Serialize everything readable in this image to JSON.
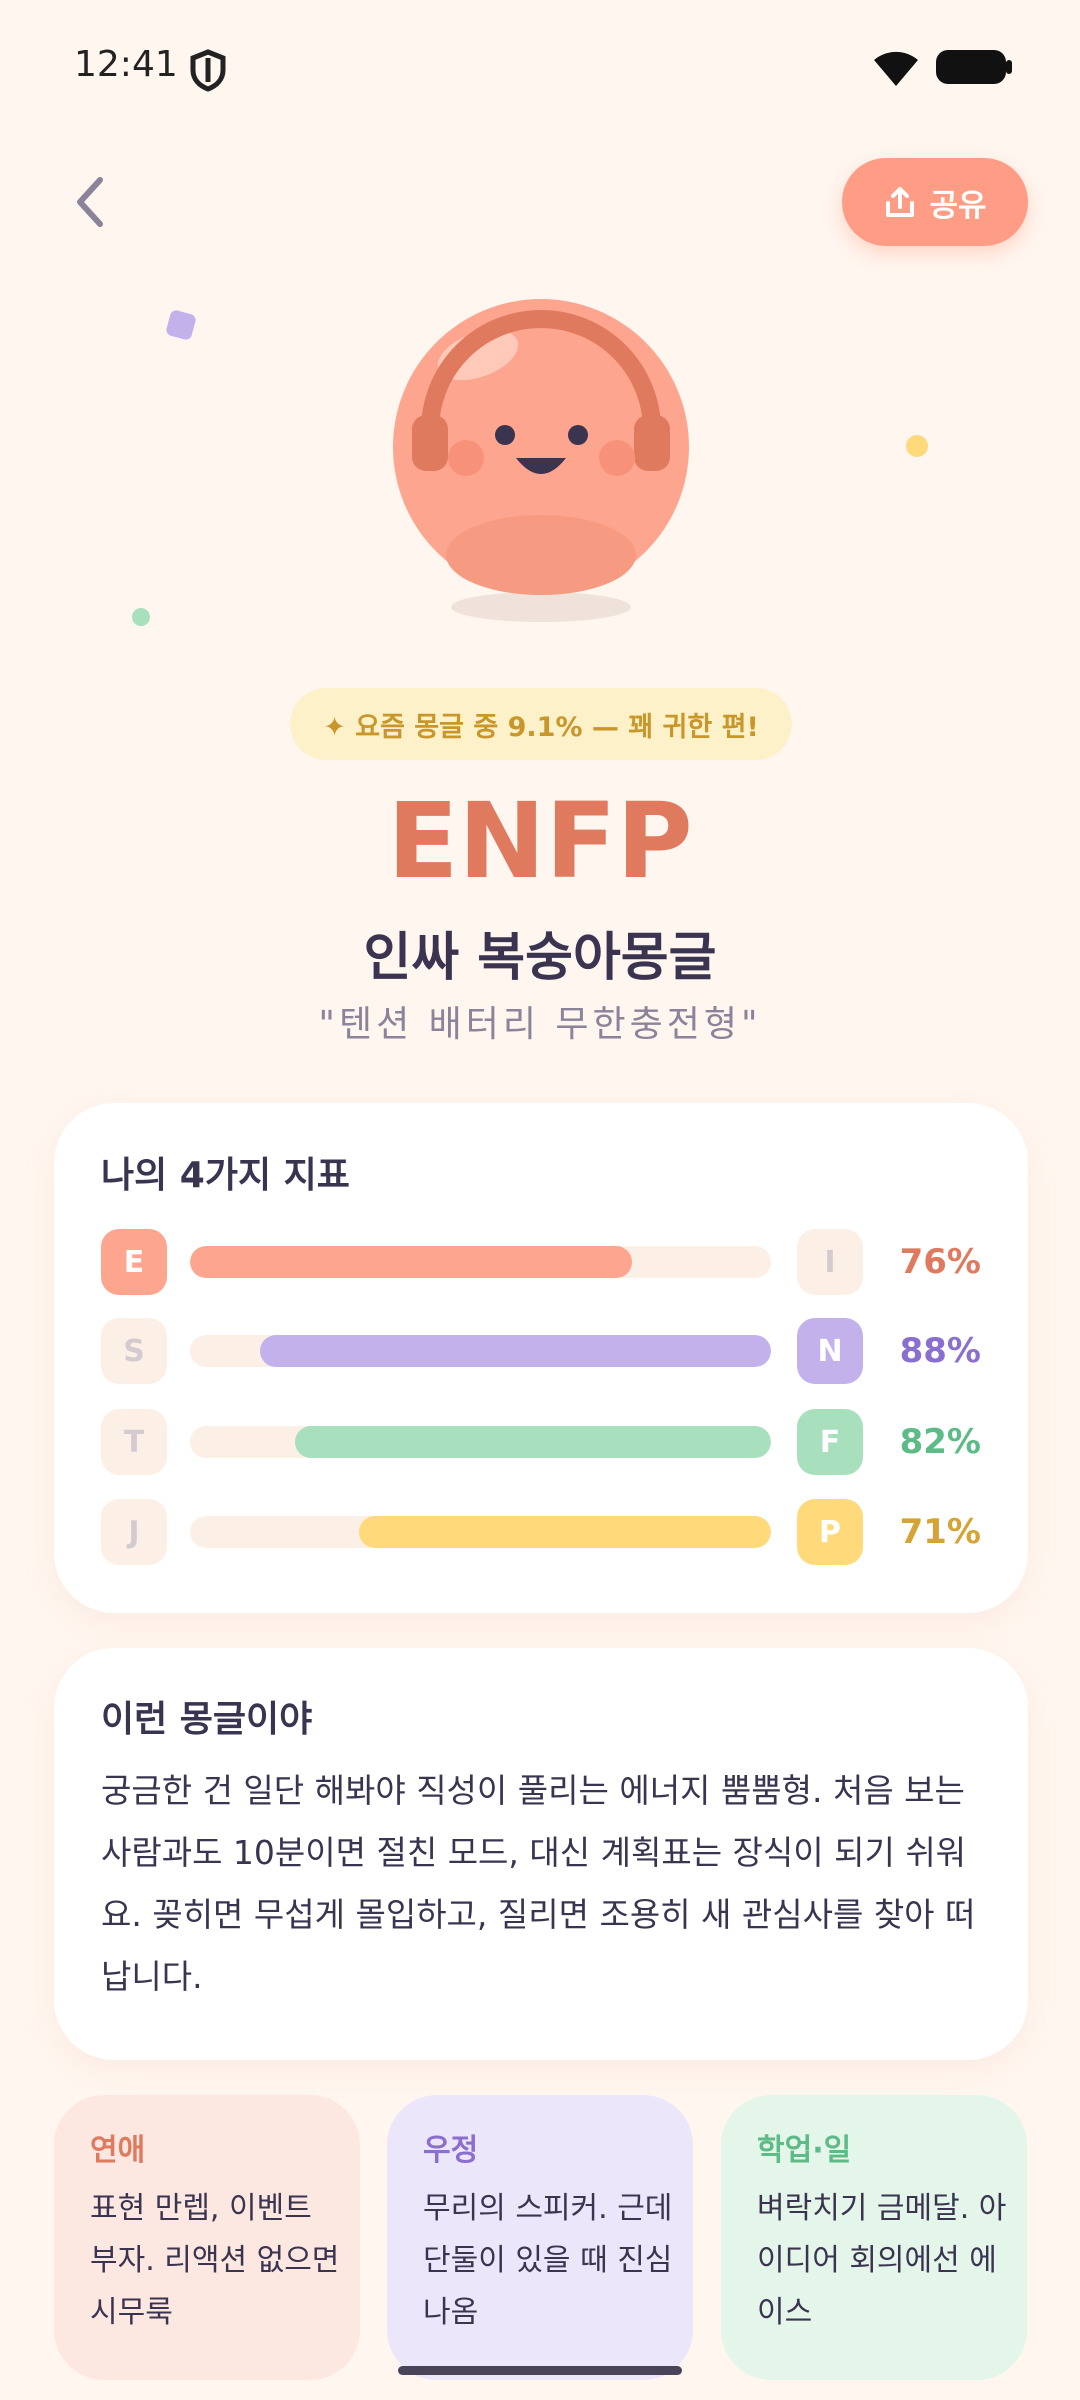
{
  "status_bar": {
    "time": "12:41"
  },
  "header": {
    "share": "공유"
  },
  "hero": {
    "badge": "✦ 요즘 몽글 중 9.1% — 꽤 귀한 편!",
    "type": "ENFP",
    "name": "인싸 복숭아몽글",
    "tagline": "\"텐션 배터리 무한충전형\""
  },
  "indicators": {
    "title": "나의 4가지 지표",
    "rows": [
      {
        "left": "E",
        "right": "I",
        "active": "left",
        "percent": {
          "value": 76,
          "label": "76%"
        },
        "color": "#fda58e",
        "text_color": "#e07a5f"
      },
      {
        "left": "S",
        "right": "N",
        "active": "right",
        "percent": {
          "value": 88,
          "label": "88%"
        },
        "color": "#c3b1ec",
        "text_color": "#8b6fd0"
      },
      {
        "left": "T",
        "right": "F",
        "active": "right",
        "percent": {
          "value": 82,
          "label": "82%"
        },
        "color": "#a8dfbd",
        "text_color": "#5dbb87"
      },
      {
        "left": "J",
        "right": "P",
        "active": "right",
        "percent": {
          "value": 71,
          "label": "71%"
        },
        "color": "#ffd97a",
        "text_color": "#d4a535"
      }
    ]
  },
  "description": {
    "title": "이런 몽글이야",
    "body": "궁금한 건 일단 해봐야 직성이 풀리는 에너지 뿜뿜형. 처음 보는 사람과도 10분이면 절친 모드, 대신 계획표는 장식이 되기 쉬워요. 꽂히면 무섭게 몰입하고, 질리면 조용히 새 관심사를 찾아 떠납니다."
  },
  "cards": [
    {
      "title": "연애",
      "body": "표현 만렙, 이벤트 부자. 리액션 없으면 시무룩",
      "bg": "#fde8e1",
      "color": "#e07a5f"
    },
    {
      "title": "우정",
      "body": "무리의 스피커. 근데 단둘이 있을 때 진심 나옴",
      "bg": "#ece6fb",
      "color": "#8b6fd0"
    },
    {
      "title": "학업·일",
      "body": "벼락치기 금메달. 아이디어 회의에선 에이스",
      "bg": "#e4f5e9",
      "color": "#5dbb87"
    }
  ]
}
